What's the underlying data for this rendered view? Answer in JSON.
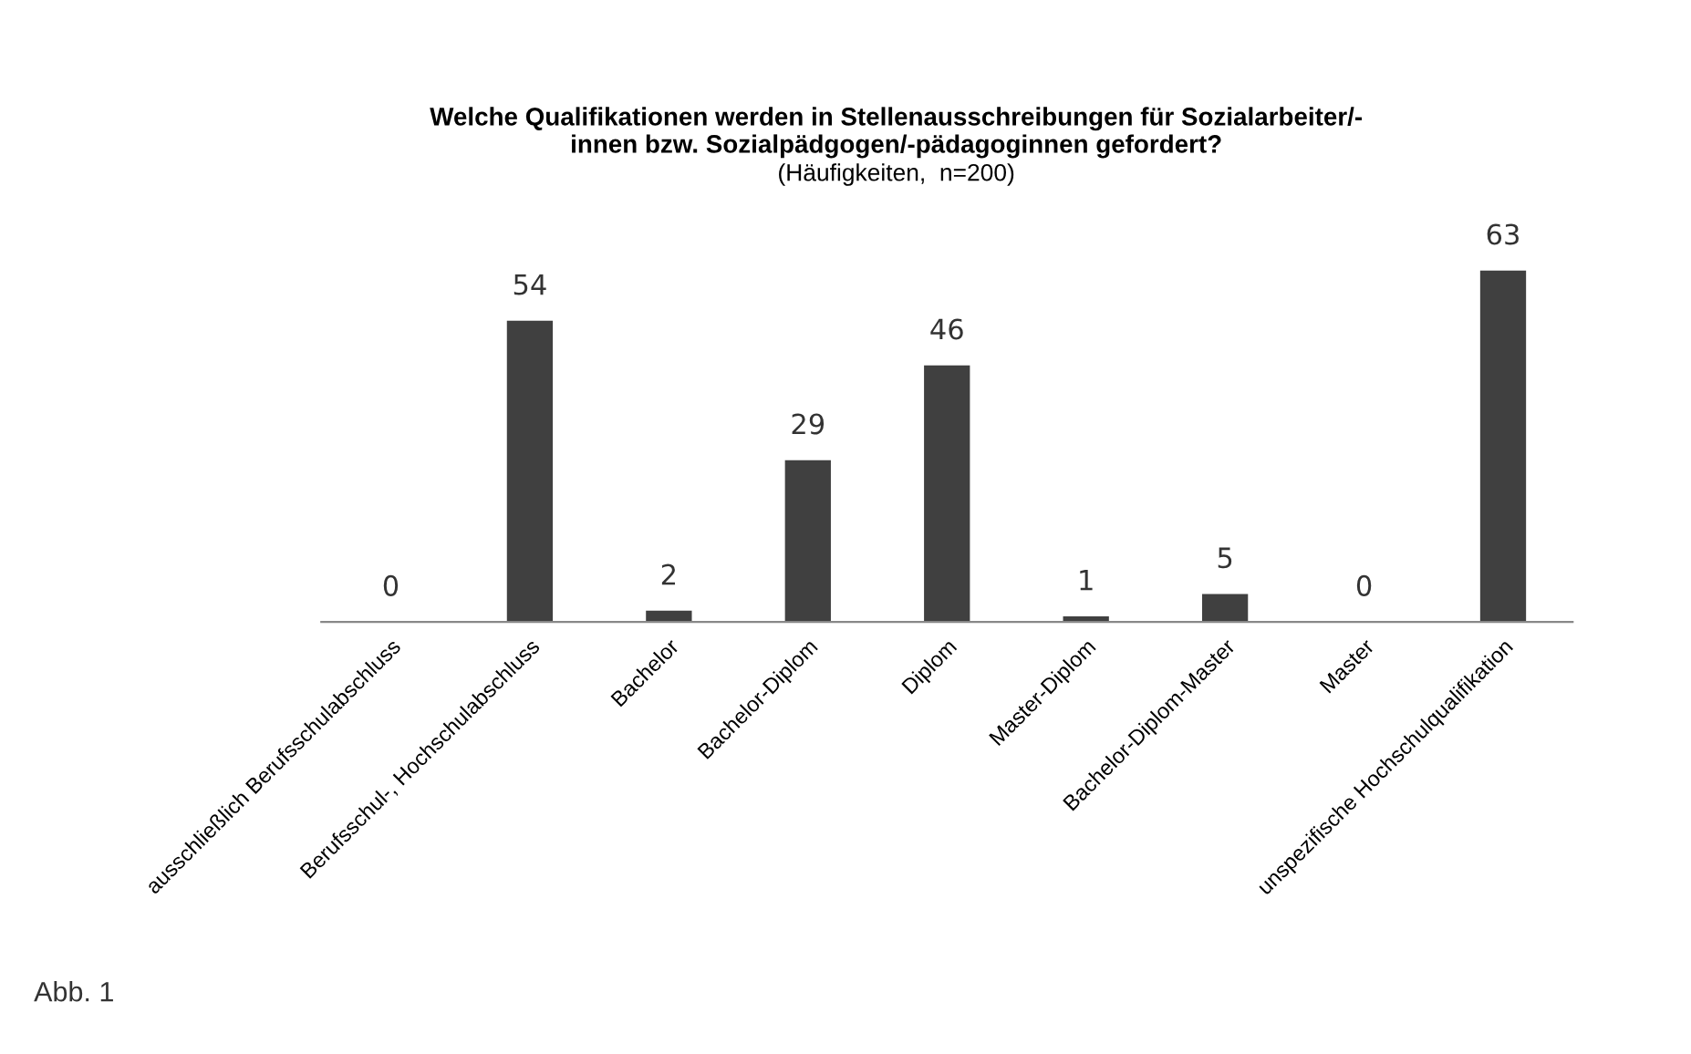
{
  "chart_data": {
    "type": "bar",
    "title": "Welche Qualifikationen werden in Stellenausschreibungen für Sozialarbeiter/-\ninnen bzw. Sozialpädgogen/-pädagoginnen gefordert?",
    "subtitle": "(Häufigkeiten,  n=200)",
    "categories": [
      "ausschließlich Berufsschulabschluss",
      "Berufsschul-, Hochschulabschluss",
      "Bachelor",
      "Bachelor-Diplom",
      "Diplom",
      "Master-Diplom",
      "Bachelor-Diplom-Master",
      "Master",
      "unspezifische Hochschulqualifikation"
    ],
    "values": [
      0,
      54,
      2,
      29,
      46,
      1,
      5,
      0,
      63
    ],
    "color": "#404040",
    "data_labels": true,
    "grid": false,
    "legend": false,
    "annotations": [
      "Abb. 1"
    ]
  }
}
